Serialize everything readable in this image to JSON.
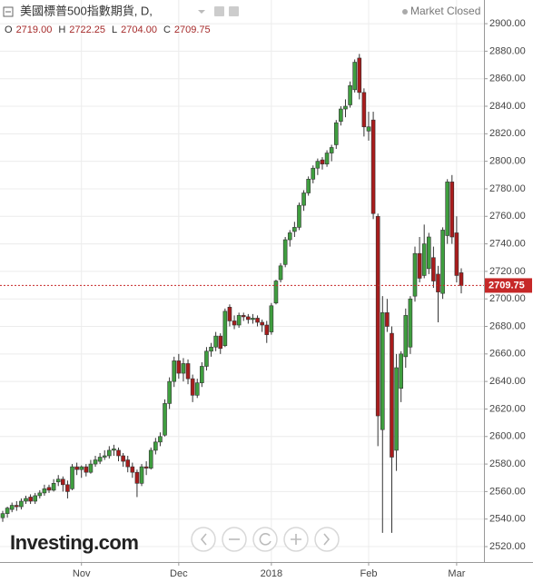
{
  "chart_data": {
    "type": "candlestick",
    "title": "美國標普500指數期貨, D,",
    "status": "Market Closed",
    "ohlc_legend": [
      {
        "label": "O",
        "value": "2719.00"
      },
      {
        "label": "H",
        "value": "2722.25"
      },
      {
        "label": "L",
        "value": "2704.00"
      },
      {
        "label": "C",
        "value": "2709.75"
      }
    ],
    "watermark": "Investing.com",
    "up_color": "#3f9e3f",
    "down_color": "#a81c1c",
    "grid": true,
    "categories": [
      null,
      null,
      null,
      null,
      null,
      null,
      null,
      null,
      null,
      null,
      null,
      null,
      null,
      null,
      null,
      null,
      null,
      "Nov",
      null,
      null,
      null,
      null,
      null,
      null,
      null,
      null,
      null,
      null,
      null,
      null,
      null,
      null,
      null,
      null,
      null,
      null,
      null,
      null,
      "Dec",
      null,
      null,
      null,
      null,
      null,
      null,
      null,
      null,
      null,
      null,
      null,
      null,
      null,
      null,
      null,
      null,
      null,
      null,
      null,
      "2018",
      null,
      null,
      null,
      null,
      null,
      null,
      null,
      null,
      null,
      null,
      null,
      null,
      null,
      null,
      null,
      null,
      null,
      null,
      null,
      null,
      "Feb",
      null,
      null,
      null,
      null,
      null,
      null,
      null,
      null,
      null,
      null,
      null,
      null,
      null,
      null,
      null,
      null,
      null,
      null,
      "Mar",
      null
    ],
    "open": [
      2541,
      2544,
      2547,
      2550,
      2549,
      2553,
      2556,
      2553,
      2557,
      2559,
      2563,
      2561,
      2567,
      2569,
      2565,
      2562,
      2578,
      2576,
      2578,
      2574,
      2580,
      2582,
      2585,
      2586,
      2590,
      2590,
      2586,
      2583,
      2578,
      2574,
      2566,
      2578,
      2577,
      2590,
      2596,
      2601,
      2624,
      2640,
      2655,
      2646,
      2653,
      2642,
      2630,
      2639,
      2651,
      2662,
      2665,
      2673,
      2666,
      2694,
      2684,
      2681,
      2688,
      2687,
      2685,
      2686,
      2683,
      2681,
      2676,
      2697,
      2714,
      2725,
      2743,
      2749,
      2752,
      2768,
      2777,
      2787,
      2795,
      2801,
      2798,
      2806,
      2812,
      2829,
      2838,
      2841,
      2852,
      2875,
      2850,
      2822,
      2830,
      2760,
      2605,
      2690,
      2675,
      2590,
      2635,
      2658,
      2665,
      2702,
      2733,
      2717,
      2722,
      2730,
      2718,
      2704,
      2746,
      2785,
      2748,
      2719
    ],
    "high": [
      2546,
      2549,
      2552,
      2553,
      2555,
      2557,
      2558,
      2559,
      2561,
      2565,
      2565,
      2569,
      2572,
      2571,
      2568,
      2580,
      2581,
      2579,
      2580,
      2583,
      2586,
      2588,
      2590,
      2593,
      2594,
      2592,
      2588,
      2586,
      2581,
      2576,
      2580,
      2582,
      2592,
      2599,
      2603,
      2627,
      2643,
      2658,
      2660,
      2657,
      2656,
      2645,
      2642,
      2654,
      2665,
      2668,
      2676,
      2675,
      2693,
      2696,
      2688,
      2690,
      2690,
      2689,
      2689,
      2688,
      2685,
      2684,
      2697,
      2714,
      2726,
      2745,
      2750,
      2756,
      2770,
      2779,
      2789,
      2797,
      2802,
      2803,
      2808,
      2812,
      2830,
      2840,
      2845,
      2858,
      2874,
      2878,
      2853,
      2836,
      2836,
      2762,
      2702,
      2700,
      2680,
      2660,
      2662,
      2693,
      2702,
      2738,
      2745,
      2754,
      2748,
      2738,
      2724,
      2752,
      2787,
      2790,
      2760,
      2722.25
    ],
    "low": [
      2538,
      2541,
      2545,
      2546,
      2547,
      2551,
      2551,
      2551,
      2555,
      2557,
      2559,
      2560,
      2564,
      2560,
      2555,
      2561,
      2572,
      2570,
      2571,
      2573,
      2578,
      2580,
      2583,
      2584,
      2586,
      2582,
      2578,
      2574,
      2570,
      2556,
      2564,
      2572,
      2576,
      2587,
      2593,
      2600,
      2620,
      2636,
      2642,
      2640,
      2638,
      2625,
      2628,
      2636,
      2648,
      2658,
      2662,
      2660,
      2665,
      2680,
      2678,
      2679,
      2684,
      2682,
      2682,
      2680,
      2676,
      2668,
      2674,
      2696,
      2712,
      2723,
      2738,
      2745,
      2750,
      2764,
      2775,
      2784,
      2790,
      2794,
      2796,
      2800,
      2809,
      2826,
      2832,
      2839,
      2850,
      2845,
      2818,
      2815,
      2758,
      2593,
      2530,
      2676,
      2530,
      2575,
      2625,
      2650,
      2660,
      2698,
      2712,
      2715,
      2718,
      2708,
      2683,
      2700,
      2740,
      2740,
      2712,
      2704
    ],
    "close": [
      2544,
      2548,
      2550,
      2549,
      2553,
      2555,
      2553,
      2557,
      2559,
      2562,
      2561,
      2566,
      2569,
      2565,
      2560,
      2578,
      2576,
      2578,
      2574,
      2580,
      2583,
      2585,
      2586,
      2590,
      2591,
      2586,
      2582,
      2578,
      2574,
      2566,
      2578,
      2577,
      2590,
      2596,
      2600,
      2624,
      2640,
      2655,
      2646,
      2653,
      2642,
      2630,
      2639,
      2651,
      2662,
      2665,
      2673,
      2664,
      2691,
      2684,
      2681,
      2688,
      2687,
      2685,
      2686,
      2683,
      2681,
      2674,
      2695,
      2713,
      2724,
      2743,
      2748,
      2752,
      2768,
      2777,
      2787,
      2795,
      2800,
      2798,
      2806,
      2810,
      2828,
      2838,
      2840,
      2855,
      2872,
      2850,
      2825,
      2825,
      2762,
      2615,
      2690,
      2680,
      2585,
      2650,
      2660,
      2688,
      2700,
      2733,
      2715,
      2740,
      2745,
      2713,
      2705,
      2750,
      2785,
      2745,
      2717,
      2709.75
    ],
    "last_price": 2709.75,
    "last_color": "#c62828",
    "ylim": [
      2508.8,
      2917.2
    ],
    "yticks": [
      {
        "value": 2520,
        "label": "2520.00"
      },
      {
        "value": 2540,
        "label": "2540.00"
      },
      {
        "value": 2560,
        "label": "2560.00"
      },
      {
        "value": 2580,
        "label": "2580.00"
      },
      {
        "value": 2600,
        "label": "2600.00"
      },
      {
        "value": 2620,
        "label": "2620.00"
      },
      {
        "value": 2640,
        "label": "2640.00"
      },
      {
        "value": 2660,
        "label": "2660.00"
      },
      {
        "value": 2680,
        "label": "2680.00"
      },
      {
        "value": 2700,
        "label": "2700.00"
      },
      {
        "value": 2720,
        "label": "2720.00"
      },
      {
        "value": 2740,
        "label": "2740.00"
      },
      {
        "value": 2760,
        "label": "2760.00"
      },
      {
        "value": 2780,
        "label": "2780.00"
      },
      {
        "value": 2800,
        "label": "2800.00"
      },
      {
        "value": 2820,
        "label": "2820.00"
      },
      {
        "value": 2840,
        "label": "2840.00"
      },
      {
        "value": 2860,
        "label": "2860.00"
      },
      {
        "value": 2880,
        "label": "2880.00"
      },
      {
        "value": 2900,
        "label": "2900.00"
      }
    ]
  }
}
